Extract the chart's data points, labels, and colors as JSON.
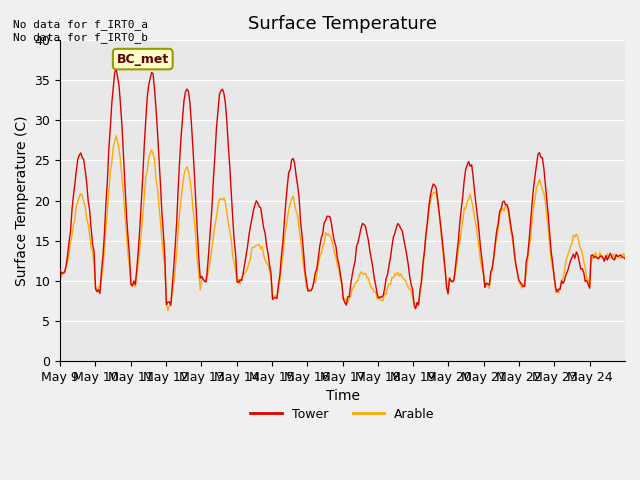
{
  "title": "Surface Temperature",
  "xlabel": "Time",
  "ylabel": "Surface Temperature (C)",
  "ylim": [
    0,
    40
  ],
  "yticks": [
    0,
    5,
    10,
    15,
    20,
    25,
    30,
    35,
    40
  ],
  "x_tick_labels": [
    "May 9",
    "May 10",
    "May 11",
    "May 12",
    "May 13",
    "May 14",
    "May 15",
    "May 16",
    "May 17",
    "May 18",
    "May 19",
    "May 20",
    "May 21",
    "May 22",
    "May 23",
    "May 24"
  ],
  "tower_color": "#dd0000",
  "arable_color": "#ffaa00",
  "plot_bg": "#e8e8e8",
  "fig_bg": "#f0f0f0",
  "annotation_text": "No data for f_IRT0_a\nNo data for f_IRT0_b",
  "legend_box_label": "BC_met",
  "legend_box_color": "#ffffcc",
  "legend_box_border": "#999900",
  "title_fontsize": 13,
  "axis_label_fontsize": 10,
  "tick_fontsize": 9,
  "tower_peaks": [
    26,
    36,
    36,
    34,
    34,
    20,
    25,
    18,
    17,
    17,
    22,
    25,
    20,
    26,
    13,
    13
  ],
  "arable_peaks": [
    21,
    29,
    27,
    25,
    21,
    15,
    21,
    16,
    11,
    11,
    22,
    21,
    20,
    23,
    16,
    13
  ],
  "base_temps": [
    11,
    9,
    9.5,
    7,
    10,
    10,
    8,
    9,
    7.5,
    8,
    7,
    10,
    9.5,
    9.5,
    9,
    13
  ]
}
